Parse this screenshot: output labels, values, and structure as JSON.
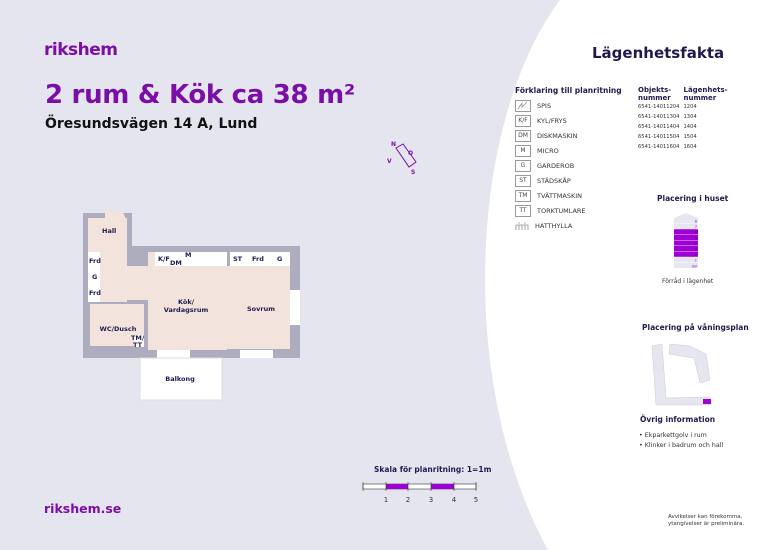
{
  "brand": {
    "logo": "rikshem",
    "website": "rikshem.se",
    "accent_color": "#7a0ea6",
    "text_color": "#1f1a4d"
  },
  "listing": {
    "title": "2 rum & Kök ca 38 m²",
    "address": "Öresundsvägen 14 A, Lund"
  },
  "compass": {
    "n": "N",
    "o": "O",
    "s": "S",
    "v": "V"
  },
  "floorplan": {
    "rooms": {
      "hall": "Hall",
      "kitchen_1": "Kök/",
      "kitchen_2": "Vardagsrum",
      "bedroom": "Sovrum",
      "bathroom": "WC/Dusch",
      "balcony": "Balkong"
    },
    "fixtures": {
      "frd1": "Frd",
      "g1": "G",
      "frd2": "Frd",
      "kf": "K/F",
      "dm": "DM",
      "m": "M",
      "st": "ST",
      "frd3": "Frd",
      "g2": "G",
      "tm": "TM/",
      "tt": "TT"
    }
  },
  "scale": {
    "title": "Skala för planritning: 1=1m",
    "ticks": [
      "1",
      "2",
      "3",
      "4",
      "5"
    ]
  },
  "facts": {
    "title": "Lägenhetsfakta",
    "legend_title": "Förklaring till planritning",
    "legend": [
      {
        "code": "",
        "icon": "stove-icon",
        "label": "SPIS"
      },
      {
        "code": "K/F",
        "label": "KYL/FRYS"
      },
      {
        "code": "DM",
        "label": "DISKMASKIN"
      },
      {
        "code": "M",
        "label": "MICRO"
      },
      {
        "code": "G",
        "label": "GARDEROB"
      },
      {
        "code": "ST",
        "label": "STÄDSKÅP"
      },
      {
        "code": "TM",
        "label": "TVÄTTMASKIN"
      },
      {
        "code": "TT",
        "label": "TORKTUMLARE"
      },
      {
        "code": "",
        "icon": "hat-rack-icon",
        "label": "HATTHYLLA"
      }
    ],
    "objects": {
      "col1": "Objekts-",
      "col1b": "nummer",
      "col2": "Lägenhets-",
      "col2b": "nummer",
      "rows": [
        [
          "6541-14011204",
          "1204"
        ],
        [
          "6541-14011304",
          "1304"
        ],
        [
          "6541-14011404",
          "1404"
        ],
        [
          "6541-14011504",
          "1504"
        ],
        [
          "6541-14011604",
          "1604"
        ]
      ]
    },
    "building": {
      "title": "Placering i huset",
      "floors": [
        "8",
        "7",
        "6",
        "5",
        "4",
        "3",
        "2",
        "1",
        "BV"
      ],
      "highlighted_floors": [
        "6",
        "5",
        "4",
        "3",
        "2"
      ],
      "caption": "Förråd i lägenhet"
    },
    "floorplan_position": {
      "title": "Placering på våningsplan"
    },
    "other": {
      "title": "Övrig information",
      "items": [
        "• Ekparkettgolv i rum",
        "• Klinker i badrum och hall"
      ]
    },
    "disclaimer_1": "Avvikelser kan förekomma,",
    "disclaimer_2": "ytangivelser är preliminära."
  }
}
